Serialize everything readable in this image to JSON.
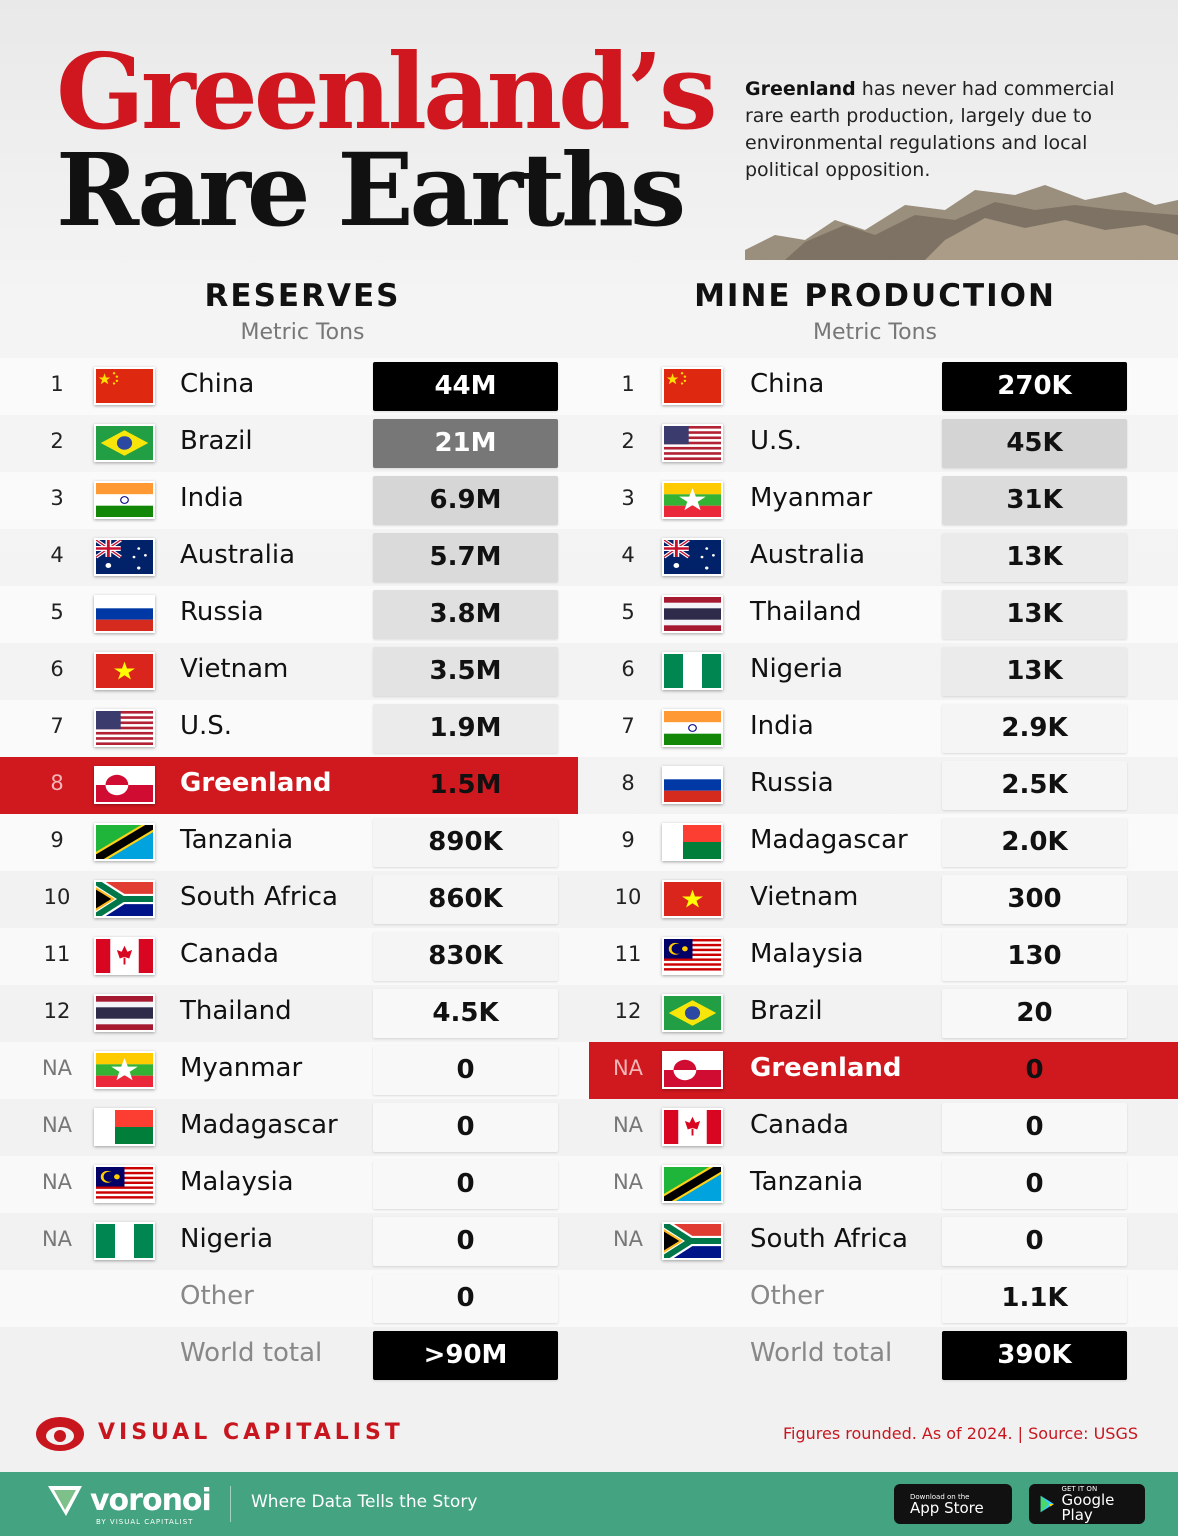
{
  "header": {
    "title_line1": "Greenland’s",
    "title_line2": "Rare Earths",
    "intro_bold": "Greenland",
    "intro_rest": " has never had commercial rare earth production, largely due to environmental regulations and local political opposition."
  },
  "chart_data": [
    {
      "type": "table",
      "title": "RESERVES",
      "subtitle": "Metric Tons",
      "columns": [
        "Rank",
        "Country",
        "Value"
      ],
      "rows": [
        {
          "rank": "1",
          "country": "China",
          "flag": "cn",
          "value": "44M",
          "box_color": "#000000"
        },
        {
          "rank": "2",
          "country": "Brazil",
          "flag": "br",
          "value": "21M",
          "box_color": "#777777"
        },
        {
          "rank": "3",
          "country": "India",
          "flag": "in",
          "value": "6.9M",
          "box_color": "#d6d6d6"
        },
        {
          "rank": "4",
          "country": "Australia",
          "flag": "au",
          "value": "5.7M",
          "box_color": "#dadada"
        },
        {
          "rank": "5",
          "country": "Russia",
          "flag": "ru",
          "value": "3.8M",
          "box_color": "#e0e0e0"
        },
        {
          "rank": "6",
          "country": "Vietnam",
          "flag": "vn",
          "value": "3.5M",
          "box_color": "#e3e3e3"
        },
        {
          "rank": "7",
          "country": "U.S.",
          "flag": "us",
          "value": "1.9M",
          "box_color": "#ebebeb"
        },
        {
          "rank": "8",
          "country": "Greenland",
          "flag": "gl",
          "value": "1.5M",
          "highlight": true
        },
        {
          "rank": "9",
          "country": "Tanzania",
          "flag": "tz",
          "value": "890K",
          "box_color": "#f5f5f5"
        },
        {
          "rank": "10",
          "country": "South Africa",
          "flag": "za",
          "value": "860K",
          "box_color": "#f5f5f5"
        },
        {
          "rank": "11",
          "country": "Canada",
          "flag": "ca",
          "value": "830K",
          "box_color": "#f5f5f5"
        },
        {
          "rank": "12",
          "country": "Thailand",
          "flag": "th",
          "value": "4.5K",
          "box_color": "#f8f8f8"
        },
        {
          "rank": "NA",
          "country": "Myanmar",
          "flag": "mm",
          "value": "0",
          "box_color": "#f8f8f8"
        },
        {
          "rank": "NA",
          "country": "Madagascar",
          "flag": "mg",
          "value": "0",
          "box_color": "#f8f8f8"
        },
        {
          "rank": "NA",
          "country": "Malaysia",
          "flag": "my",
          "value": "0",
          "box_color": "#f8f8f8"
        },
        {
          "rank": "NA",
          "country": "Nigeria",
          "flag": "ng",
          "value": "0",
          "box_color": "#f8f8f8"
        },
        {
          "rank": "",
          "country": "Other",
          "value": "0",
          "box_color": "#f8f8f8",
          "other": true
        },
        {
          "rank": "",
          "country": "World total",
          "value": ">90M",
          "box_color": "#000000",
          "other": true
        }
      ]
    },
    {
      "type": "table",
      "title": "MINE PRODUCTION",
      "subtitle": "Metric Tons",
      "columns": [
        "Rank",
        "Country",
        "Value"
      ],
      "rows": [
        {
          "rank": "1",
          "country": "China",
          "flag": "cn",
          "value": "270K",
          "box_color": "#000000"
        },
        {
          "rank": "2",
          "country": "U.S.",
          "flag": "us",
          "value": "45K",
          "box_color": "#d4d4d4"
        },
        {
          "rank": "3",
          "country": "Myanmar",
          "flag": "mm",
          "value": "31K",
          "box_color": "#dcdcdc"
        },
        {
          "rank": "4",
          "country": "Australia",
          "flag": "au",
          "value": "13K",
          "box_color": "#ebebeb"
        },
        {
          "rank": "5",
          "country": "Thailand",
          "flag": "th",
          "value": "13K",
          "box_color": "#ebebeb"
        },
        {
          "rank": "6",
          "country": "Nigeria",
          "flag": "ng",
          "value": "13K",
          "box_color": "#ebebeb"
        },
        {
          "rank": "7",
          "country": "India",
          "flag": "in",
          "value": "2.9K",
          "box_color": "#f5f5f5"
        },
        {
          "rank": "8",
          "country": "Russia",
          "flag": "ru",
          "value": "2.5K",
          "box_color": "#f5f5f5"
        },
        {
          "rank": "9",
          "country": "Madagascar",
          "flag": "mg",
          "value": "2.0K",
          "box_color": "#f5f5f5"
        },
        {
          "rank": "10",
          "country": "Vietnam",
          "flag": "vn",
          "value": "300",
          "box_color": "#f8f8f8"
        },
        {
          "rank": "11",
          "country": "Malaysia",
          "flag": "my",
          "value": "130",
          "box_color": "#f8f8f8"
        },
        {
          "rank": "12",
          "country": "Brazil",
          "flag": "br",
          "value": "20",
          "box_color": "#f8f8f8"
        },
        {
          "rank": "NA",
          "country": "Greenland",
          "flag": "gl",
          "value": "0",
          "highlight": true
        },
        {
          "rank": "NA",
          "country": "Canada",
          "flag": "ca",
          "value": "0",
          "box_color": "#f8f8f8"
        },
        {
          "rank": "NA",
          "country": "Tanzania",
          "flag": "tz",
          "value": "0",
          "box_color": "#f8f8f8"
        },
        {
          "rank": "NA",
          "country": "South Africa",
          "flag": "za",
          "value": "0",
          "box_color": "#f8f8f8"
        },
        {
          "rank": "",
          "country": "Other",
          "value": "1.1K",
          "box_color": "#f8f8f8",
          "other": true
        },
        {
          "rank": "",
          "country": "World total",
          "value": "390K",
          "box_color": "#000000",
          "other": true
        }
      ]
    }
  ],
  "colors": {
    "accent": "#d0181f",
    "footer": "#44a381"
  },
  "footer": {
    "brand": "VISUAL CAPITALIST",
    "source": "Figures rounded. As of 2024.  |  Source: USGS",
    "voronoi": "voronoi",
    "voronoi_by": "BY VISUAL CAPITALIST",
    "tagline": "Where Data Tells the Story",
    "appstore_small": "Download on the",
    "appstore": "App Store",
    "gplay_small": "GET IT ON",
    "gplay": "Google Play"
  }
}
